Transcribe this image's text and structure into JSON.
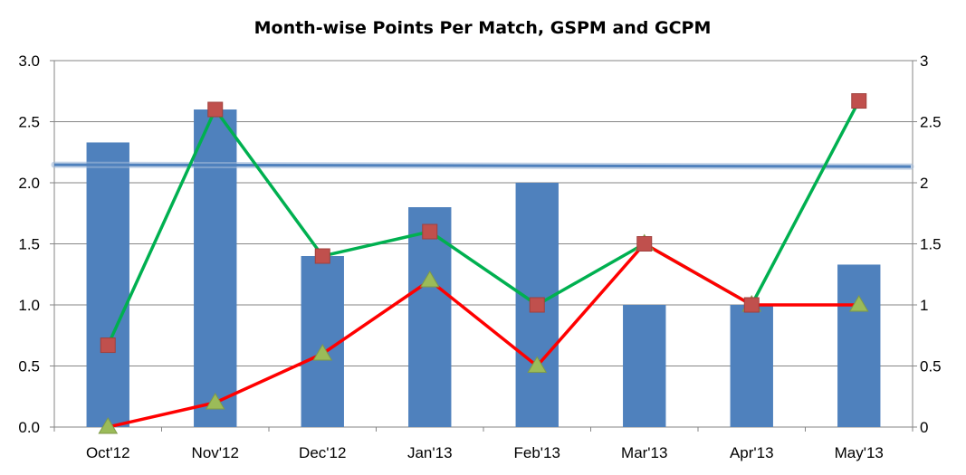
{
  "chart_data": {
    "type": "bar",
    "title": "Month-wise Points Per Match, GSPM and GCPM",
    "categories": [
      "Oct'12",
      "Nov'12",
      "Dec'12",
      "Jan'13",
      "Feb'13",
      "Mar'13",
      "Apr'13",
      "May'13"
    ],
    "series": [
      {
        "type": "bar",
        "axis": "left",
        "color": "#4f81bd",
        "values": [
          2.33,
          2.6,
          1.4,
          1.8,
          2.0,
          1.0,
          1.0,
          1.33
        ]
      },
      {
        "type": "line",
        "axis": "right",
        "color": "#00b050",
        "marker": "square",
        "marker_color": "#c0504d",
        "values": [
          0.67,
          2.6,
          1.4,
          1.6,
          1.0,
          1.5,
          1.0,
          2.67
        ]
      },
      {
        "type": "line",
        "axis": "right",
        "color": "#ff0000",
        "marker": "triangle",
        "marker_color": "#9bbb59",
        "values": [
          0.0,
          0.2,
          0.6,
          1.2,
          0.5,
          1.5,
          1.0,
          1.0
        ]
      }
    ],
    "reference_line": {
      "value": 2.14,
      "color": "#4f81bd"
    },
    "left_axis": {
      "ylim": [
        0,
        3
      ],
      "ticks": [
        "0.0",
        "0.5",
        "1.0",
        "1.5",
        "2.0",
        "2.5",
        "3.0"
      ]
    },
    "right_axis": {
      "ylim": [
        0,
        3
      ],
      "ticks": [
        "0",
        "0.5",
        "1",
        "1.5",
        "2",
        "2.5",
        "3"
      ]
    },
    "grid": true,
    "legend": "none"
  }
}
